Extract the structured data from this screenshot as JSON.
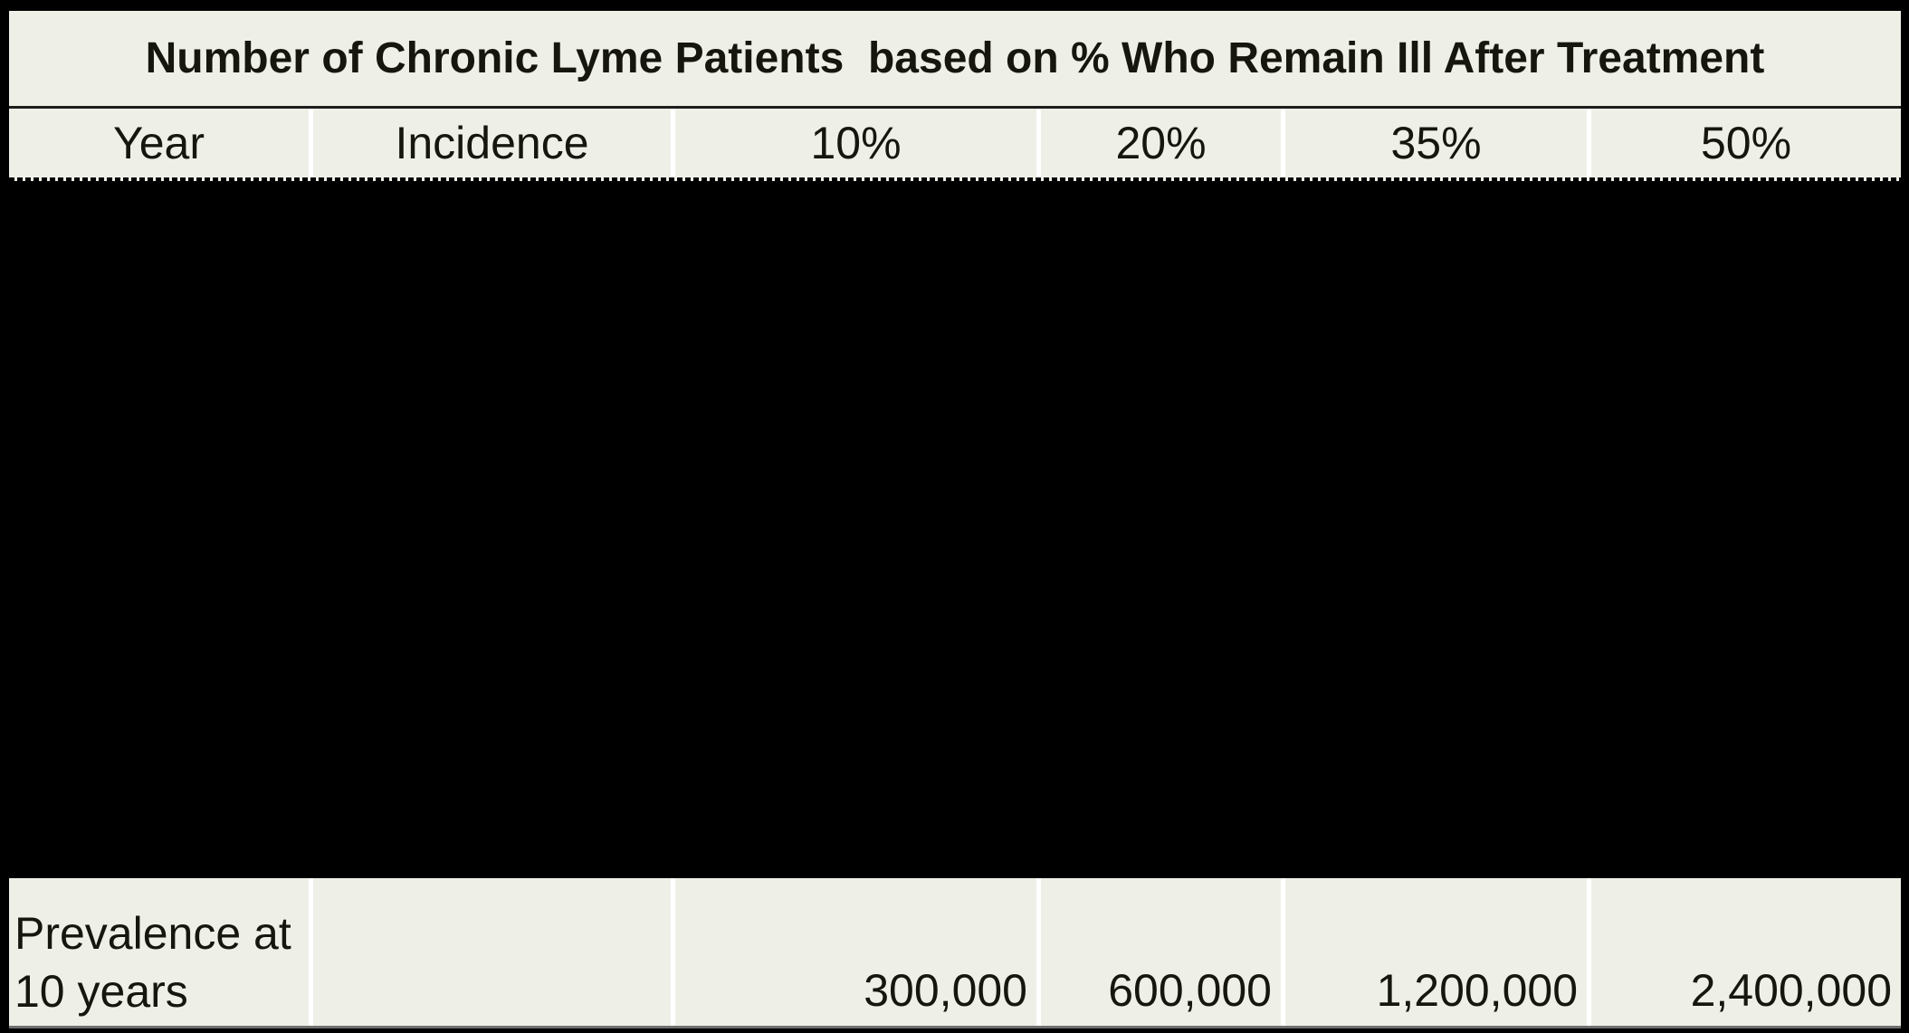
{
  "table": {
    "title": "Number of Chronic Lyme Patients  based on % Who Remain Ill After Treatment",
    "columns": [
      "Year",
      "Incidence",
      "10%",
      "20%",
      "35%",
      "50%"
    ],
    "footer": {
      "label": "Prevalence at 10 years",
      "label_lines": [
        "Prevalence at",
        "10 years"
      ],
      "incidence_value": "",
      "values": [
        "300,000",
        "600,000",
        "1,200,000",
        "2,400,000"
      ]
    },
    "colors": {
      "cell_background": "#eef0e7",
      "divider": "#ffffff",
      "redacted": "#000000",
      "title_rule": "#1d1d1b",
      "bottom_rule": "#6f6f6f"
    }
  },
  "chart_data": {
    "type": "table",
    "title": "Number of Chronic Lyme Patients  based on % Who Remain Ill After Treatment",
    "columns": [
      "Year",
      "Incidence",
      "10%",
      "20%",
      "35%",
      "50%"
    ],
    "rows": [
      [
        "Prevalence at 10 years",
        "",
        "300,000",
        "600,000",
        "1,200,000",
        "2,400,000"
      ]
    ],
    "notes": "All rows between the header row and the 'Prevalence at 10 years' row are covered by a solid black redaction block; no values visible there."
  }
}
